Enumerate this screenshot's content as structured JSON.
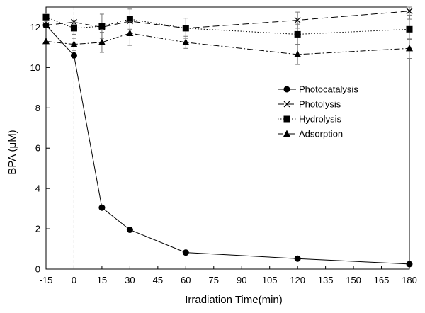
{
  "chart_data": {
    "type": "line",
    "title": "",
    "xlabel": "Irradiation Time(min)",
    "ylabel": "BPA (μM)",
    "xlim": [
      -15,
      180
    ],
    "ylim": [
      0,
      13
    ],
    "xticks": [
      -15,
      0,
      15,
      30,
      45,
      60,
      75,
      90,
      105,
      120,
      135,
      150,
      165,
      180
    ],
    "yticks": [
      0,
      2,
      4,
      6,
      8,
      10,
      12
    ],
    "vertical_reference_line": 0,
    "legend_position": "right",
    "series": [
      {
        "name": "Photocatalysis",
        "marker": "circle",
        "line_style": "solid",
        "x": [
          -15,
          0,
          15,
          30,
          60,
          120,
          180
        ],
        "values": [
          12.1,
          10.6,
          3.05,
          1.95,
          0.82,
          0.52,
          0.25
        ],
        "errors": [
          0,
          0,
          0,
          0,
          0,
          0,
          0
        ]
      },
      {
        "name": "Photolysis",
        "marker": "x",
        "line_style": "dashed",
        "x": [
          -15,
          0,
          15,
          30,
          60,
          120,
          180
        ],
        "values": [
          12.1,
          12.25,
          12.0,
          12.3,
          11.95,
          12.35,
          12.8
        ],
        "errors": [
          0,
          0.1,
          0,
          0,
          0,
          0.4,
          0.2
        ]
      },
      {
        "name": "Hydrolysis",
        "marker": "square",
        "line_style": "dotted",
        "x": [
          -15,
          0,
          15,
          30,
          60,
          120,
          180
        ],
        "values": [
          12.5,
          11.95,
          12.05,
          12.4,
          11.95,
          11.65,
          11.9
        ],
        "errors": [
          0.2,
          0.3,
          0.6,
          0.5,
          0.5,
          0.5,
          0.5
        ]
      },
      {
        "name": "Adsorption",
        "marker": "triangle",
        "line_style": "dashdot",
        "x": [
          -15,
          0,
          15,
          30,
          60,
          120,
          180
        ],
        "values": [
          11.3,
          11.15,
          11.25,
          11.7,
          11.25,
          10.65,
          10.95
        ],
        "errors": [
          0,
          0.3,
          0.5,
          0.6,
          0.3,
          0.5,
          0.5
        ]
      }
    ]
  }
}
